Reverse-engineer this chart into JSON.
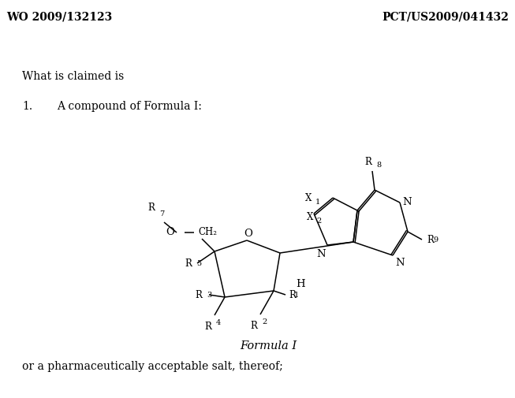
{
  "background_color": "#ffffff",
  "header_left": "WO 2009/132123",
  "header_right": "PCT/US2009/041432",
  "claim_label": "What is claimed is",
  "item_number": "1.",
  "item_text": "A compound of Formula I:",
  "formula_label": "Formula I",
  "footer_text": "or a pharmaceutically acceptable salt, thereof;",
  "font_family": "serif"
}
